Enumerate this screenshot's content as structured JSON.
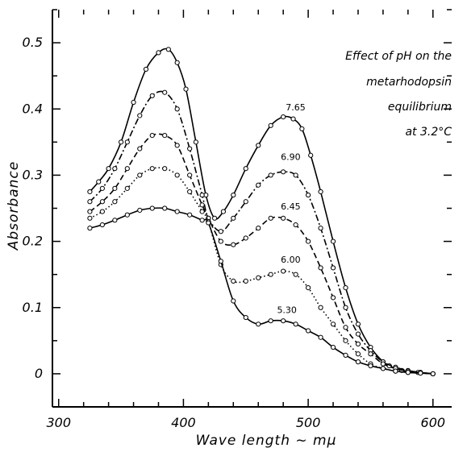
{
  "chart_data": {
    "type": "line",
    "title_lines": [
      "Effect of pH on the",
      "metarhodopsin",
      "equilibrium",
      "at 3.2°C"
    ],
    "xlabel": "Wave   length ~ mμ",
    "ylabel": "Absorbance",
    "xlim": [
      295,
      615
    ],
    "ylim": [
      -0.05,
      0.55
    ],
    "xticks": [
      300,
      400,
      500,
      600
    ],
    "xtick_labels": [
      "300",
      "400",
      "500",
      "600"
    ],
    "yticks": [
      0,
      0.1,
      0.2,
      0.3,
      0.4,
      0.5
    ],
    "ytick_labels": [
      "0",
      "0.1",
      "0.2",
      "0.3",
      "0.4",
      "0.5"
    ],
    "grid": false,
    "series": [
      {
        "name": "7.65",
        "style": "solid",
        "x": [
          325,
          332,
          340,
          350,
          360,
          370,
          380,
          388,
          395,
          402,
          410,
          418,
          425,
          432,
          440,
          450,
          460,
          470,
          480,
          488,
          495,
          502,
          510,
          520,
          530,
          540,
          550,
          560,
          565,
          575,
          588,
          600
        ],
        "y": [
          0.275,
          0.29,
          0.31,
          0.35,
          0.41,
          0.46,
          0.485,
          0.49,
          0.47,
          0.43,
          0.35,
          0.27,
          0.235,
          0.245,
          0.27,
          0.31,
          0.345,
          0.375,
          0.388,
          0.385,
          0.37,
          0.33,
          0.275,
          0.2,
          0.13,
          0.075,
          0.04,
          0.018,
          0.012,
          0.005,
          0.002,
          0.0
        ]
      },
      {
        "name": "6.90",
        "style": "dash-dot",
        "x": [
          325,
          335,
          345,
          355,
          365,
          375,
          385,
          395,
          405,
          415,
          420,
          430,
          440,
          450,
          460,
          470,
          480,
          490,
          500,
          510,
          520,
          530,
          540,
          550,
          560,
          570,
          580,
          590,
          600
        ],
        "y": [
          0.26,
          0.28,
          0.31,
          0.35,
          0.39,
          0.42,
          0.425,
          0.4,
          0.34,
          0.27,
          0.235,
          0.215,
          0.235,
          0.26,
          0.285,
          0.3,
          0.305,
          0.3,
          0.27,
          0.22,
          0.16,
          0.1,
          0.06,
          0.035,
          0.018,
          0.01,
          0.005,
          0.002,
          0.0
        ]
      },
      {
        "name": "6.45",
        "style": "dashed",
        "x": [
          325,
          335,
          345,
          355,
          365,
          375,
          385,
          395,
          405,
          415,
          420,
          430,
          440,
          450,
          460,
          470,
          480,
          490,
          500,
          510,
          520,
          530,
          540,
          550,
          560,
          570,
          580,
          590,
          600
        ],
        "y": [
          0.245,
          0.26,
          0.28,
          0.31,
          0.34,
          0.36,
          0.36,
          0.345,
          0.3,
          0.255,
          0.235,
          0.2,
          0.195,
          0.205,
          0.22,
          0.235,
          0.235,
          0.225,
          0.2,
          0.16,
          0.115,
          0.07,
          0.045,
          0.03,
          0.015,
          0.008,
          0.004,
          0.002,
          0.0
        ]
      },
      {
        "name": "6.00",
        "style": "dotted",
        "x": [
          325,
          335,
          345,
          355,
          365,
          375,
          385,
          395,
          405,
          415,
          420,
          430,
          440,
          450,
          460,
          470,
          480,
          490,
          500,
          510,
          520,
          530,
          540,
          550,
          560,
          570,
          580,
          590,
          600
        ],
        "y": [
          0.235,
          0.245,
          0.26,
          0.28,
          0.3,
          0.31,
          0.31,
          0.3,
          0.275,
          0.245,
          0.23,
          0.165,
          0.14,
          0.14,
          0.145,
          0.15,
          0.155,
          0.15,
          0.13,
          0.1,
          0.075,
          0.05,
          0.03,
          0.015,
          0.008,
          0.004,
          0.002,
          0.001,
          0.0
        ]
      },
      {
        "name": "5.30",
        "style": "solid",
        "x": [
          325,
          335,
          345,
          355,
          365,
          375,
          385,
          395,
          405,
          415,
          420,
          430,
          440,
          450,
          460,
          470,
          480,
          490,
          500,
          510,
          520,
          530,
          540,
          550,
          560,
          570,
          580,
          590,
          600
        ],
        "y": [
          0.22,
          0.225,
          0.232,
          0.24,
          0.247,
          0.25,
          0.25,
          0.245,
          0.24,
          0.232,
          0.228,
          0.17,
          0.11,
          0.085,
          0.075,
          0.08,
          0.08,
          0.075,
          0.065,
          0.055,
          0.04,
          0.028,
          0.018,
          0.012,
          0.008,
          0.004,
          0.002,
          0.001,
          0.0
        ]
      }
    ],
    "series_labels": [
      {
        "text": "7.65",
        "x": 482,
        "y": 0.398
      },
      {
        "text": "6.90",
        "x": 478,
        "y": 0.323
      },
      {
        "text": "6.45",
        "x": 478,
        "y": 0.248
      },
      {
        "text": "6.00",
        "x": 478,
        "y": 0.168
      },
      {
        "text": "5.30",
        "x": 475,
        "y": 0.092
      }
    ]
  }
}
